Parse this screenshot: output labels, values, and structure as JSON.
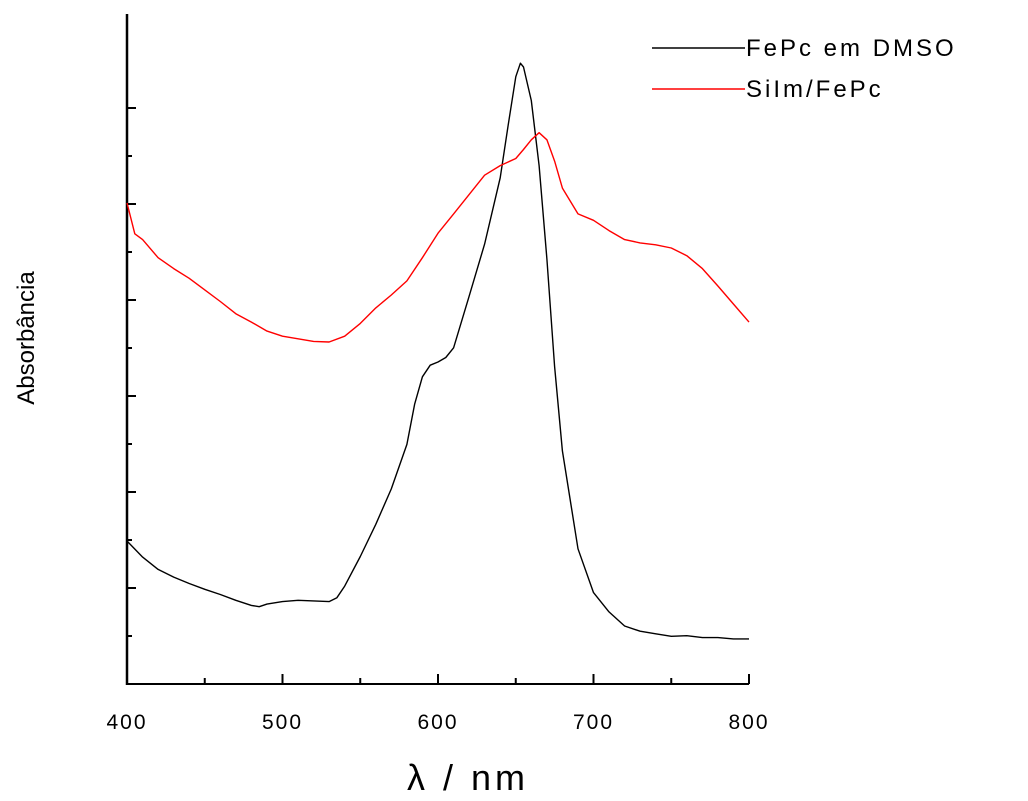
{
  "chart_data": {
    "type": "line",
    "title": "",
    "xlabel": "λ / nm",
    "ylabel": "Absorbância",
    "xlim": [
      400,
      800
    ],
    "ylim": [
      0,
      1
    ],
    "x_ticks": [
      "400",
      "500",
      "600",
      "700",
      "800"
    ],
    "y_tick_labels_shown": false,
    "grid": false,
    "legend_position": "top-right",
    "series": [
      {
        "name": "FePc em DMSO",
        "color": "#000000",
        "x": [
          400,
          410,
          420,
          430,
          440,
          450,
          460,
          470,
          480,
          485,
          490,
          500,
          510,
          520,
          530,
          535,
          540,
          550,
          560,
          570,
          580,
          585,
          590,
          595,
          600,
          605,
          610,
          620,
          630,
          640,
          645,
          650,
          653,
          655,
          660,
          665,
          670,
          675,
          680,
          690,
          700,
          710,
          720,
          730,
          740,
          750,
          760,
          770,
          780,
          790,
          800
        ],
        "y": [
          0.222,
          0.197,
          0.178,
          0.166,
          0.156,
          0.147,
          0.139,
          0.13,
          0.122,
          0.12,
          0.124,
          0.128,
          0.13,
          0.129,
          0.128,
          0.134,
          0.152,
          0.198,
          0.248,
          0.303,
          0.372,
          0.435,
          0.477,
          0.495,
          0.5,
          0.507,
          0.522,
          0.602,
          0.683,
          0.786,
          0.866,
          0.943,
          0.964,
          0.958,
          0.906,
          0.805,
          0.66,
          0.493,
          0.362,
          0.21,
          0.142,
          0.112,
          0.09,
          0.082,
          0.078,
          0.074,
          0.075,
          0.072,
          0.072,
          0.07,
          0.07
        ]
      },
      {
        "name": "SiIm/FePc",
        "color": "#ff0000",
        "x": [
          400,
          405,
          410,
          420,
          430,
          440,
          450,
          460,
          470,
          480,
          490,
          500,
          510,
          520,
          530,
          540,
          550,
          560,
          570,
          580,
          590,
          600,
          610,
          620,
          630,
          640,
          650,
          655,
          660,
          665,
          670,
          675,
          680,
          690,
          700,
          710,
          720,
          730,
          740,
          750,
          760,
          770,
          780,
          790,
          800
        ],
        "y": [
          0.747,
          0.699,
          0.69,
          0.662,
          0.645,
          0.63,
          0.612,
          0.594,
          0.575,
          0.562,
          0.548,
          0.54,
          0.536,
          0.532,
          0.531,
          0.54,
          0.56,
          0.584,
          0.604,
          0.626,
          0.662,
          0.7,
          0.73,
          0.76,
          0.79,
          0.805,
          0.816,
          0.83,
          0.845,
          0.856,
          0.845,
          0.812,
          0.77,
          0.73,
          0.72,
          0.704,
          0.69,
          0.685,
          0.682,
          0.677,
          0.665,
          0.645,
          0.618,
          0.59,
          0.562
        ]
      }
    ]
  }
}
